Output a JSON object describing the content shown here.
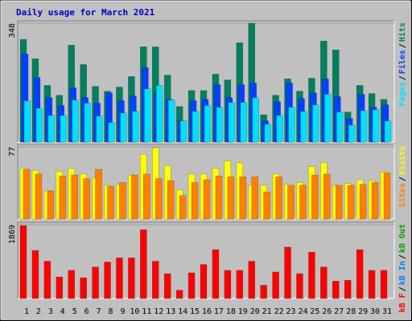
{
  "chart_data": [
    {
      "type": "bar",
      "title": "Daily usage for March 2021",
      "ylim": [
        0,
        348
      ],
      "yticks": [
        348
      ],
      "legend_separator": "/",
      "series": [
        {
          "name": "Hits",
          "color": "#008060",
          "values": [
            301,
            244,
            166,
            137,
            284,
            227,
            163,
            149,
            161,
            192,
            279,
            279,
            196,
            104,
            151,
            151,
            199,
            182,
            291,
            348,
            80,
            137,
            185,
            149,
            187,
            296,
            270,
            88,
            166,
            142,
            125
          ]
        },
        {
          "name": "Files",
          "color": "#0040ff",
          "values": [
            258,
            189,
            130,
            107,
            159,
            130,
            114,
            144,
            121,
            135,
            218,
            140,
            125,
            62,
            121,
            125,
            168,
            130,
            168,
            173,
            62,
            118,
            173,
            128,
            144,
            185,
            133,
            69,
            140,
            102,
            109
          ]
        },
        {
          "name": "Pages",
          "color": "#00e0ff",
          "values": [
            121,
            99,
            78,
            78,
            123,
            114,
            76,
            57,
            85,
            90,
            156,
            166,
            123,
            62,
            90,
            107,
            102,
            116,
            116,
            130,
            52,
            78,
            102,
            90,
            109,
            140,
            88,
            50,
            92,
            95,
            62
          ]
        }
      ]
    },
    {
      "type": "bar",
      "ylim": [
        0,
        77
      ],
      "yticks": [
        77
      ],
      "legend_separator": "/",
      "series": [
        {
          "name": "Visits",
          "color": "#ffff00",
          "values": [
            54,
            52,
            30,
            51,
            54,
            48,
            44,
            36,
            37,
            47,
            69,
            76,
            57,
            31,
            48,
            48,
            54,
            62,
            60,
            36,
            36,
            48,
            37,
            39,
            56,
            60,
            36,
            38,
            42,
            41,
            50
          ]
        },
        {
          "name": "Sites",
          "color": "#ff8000",
          "values": [
            53,
            48,
            30,
            46,
            47,
            43,
            53,
            35,
            39,
            47,
            48,
            43,
            41,
            25,
            39,
            42,
            46,
            45,
            45,
            45,
            29,
            45,
            36,
            36,
            47,
            48,
            36,
            36,
            37,
            39,
            49
          ]
        }
      ]
    },
    {
      "type": "bar",
      "ylim": [
        0,
        1869
      ],
      "yticks": [
        1869
      ],
      "legend_separator": "/",
      "categories": [
        "1",
        "2",
        "3",
        "4",
        "5",
        "6",
        "7",
        "8",
        "9",
        "10",
        "11",
        "12",
        "13",
        "14",
        "15",
        "16",
        "17",
        "18",
        "19",
        "20",
        "21",
        "22",
        "23",
        "24",
        "25",
        "26",
        "27",
        "28",
        "29",
        "30",
        "31"
      ],
      "category_colors": [
        "#000000",
        "#000000",
        "#000000",
        "#000000",
        "#000000",
        "#008060",
        "#008060",
        "#000000",
        "#000000",
        "#000000",
        "#000000",
        "#000000",
        "#008060",
        "#008060",
        "#000000",
        "#000000",
        "#000000",
        "#000000",
        "#000000",
        "#008060",
        "#008060",
        "#000000",
        "#000000",
        "#000000",
        "#000000",
        "#000000",
        "#008060",
        "#008060",
        "#000000",
        "#000000",
        "#000000"
      ],
      "series": [
        {
          "name": "kB F",
          "color": "#ff0000",
          "values": [
            1848,
            1218,
            945,
            546,
            714,
            525,
            798,
            924,
            1029,
            1029,
            1743,
            945,
            630,
            210,
            651,
            861,
            1239,
            714,
            714,
            945,
            336,
            672,
            1302,
            630,
            1176,
            798,
            441,
            462,
            1239,
            714,
            714
          ]
        }
      ],
      "legend_extra": [
        {
          "name": "kB In",
          "color": "#0080ff"
        },
        {
          "name": "kB Out",
          "color": "#00a000"
        }
      ]
    }
  ]
}
